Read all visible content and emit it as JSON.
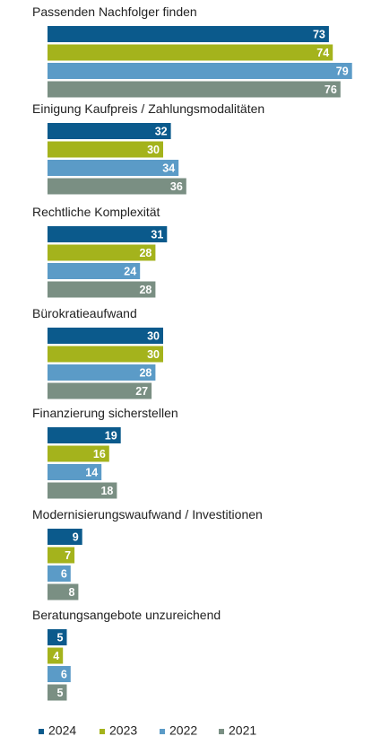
{
  "chart_data": {
    "type": "bar",
    "orientation": "horizontal",
    "categories": [
      "Passenden Nachfolger finden",
      "Einigung Kaufpreis / Zahlungsmodalitäten",
      "Rechtliche Komplexität",
      "Bürokratieaufwand",
      "Finanzierung sicherstellen",
      "Modernisierungswaufwand / Investitionen",
      "Beratungsangebote unzureichend"
    ],
    "series": [
      {
        "name": "2024",
        "color": "#0b5a8c",
        "values": [
          73,
          32,
          31,
          30,
          19,
          9,
          5
        ]
      },
      {
        "name": "2023",
        "color": "#a4b31c",
        "values": [
          74,
          30,
          28,
          30,
          16,
          7,
          4
        ]
      },
      {
        "name": "2022",
        "color": "#5b9bc7",
        "values": [
          79,
          34,
          24,
          28,
          14,
          6,
          6
        ]
      },
      {
        "name": "2021",
        "color": "#7a8f83",
        "values": [
          76,
          36,
          28,
          27,
          18,
          8,
          5
        ]
      }
    ],
    "xlim": [
      0,
      80
    ],
    "grid": false,
    "legend_position": "bottom"
  }
}
